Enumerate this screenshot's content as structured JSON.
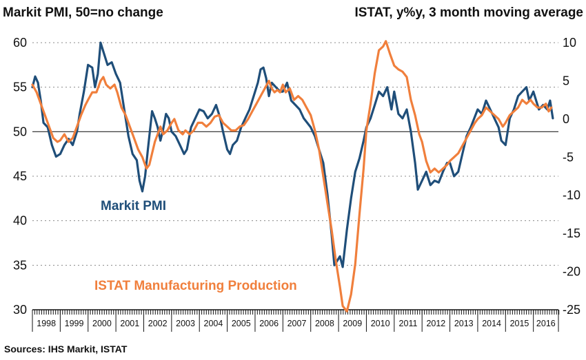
{
  "chart_data": {
    "type": "line",
    "title_left": "Markit PMI, 50=no change",
    "title_right": "ISTAT, y%y, 3 month moving average",
    "source": "Sources: IHS Markit, ISTAT",
    "y_left": {
      "min": 30,
      "max": 60,
      "ticks": [
        30,
        35,
        40,
        45,
        50,
        55,
        60
      ],
      "reference_line": 50
    },
    "y_right": {
      "min": -25,
      "max": 10,
      "ticks": [
        -25,
        -20,
        -15,
        -10,
        -5,
        0,
        5,
        10
      ]
    },
    "x": {
      "start": 1998,
      "end": 2016.9,
      "labels": [
        "1998",
        "1999",
        "2000",
        "2001",
        "2002",
        "2003",
        "2004",
        "2005",
        "2006",
        "2007",
        "2008",
        "2009",
        "2010",
        "2011",
        "2012",
        "2013",
        "2014",
        "2015",
        "2016"
      ]
    },
    "series": [
      {
        "name": "Markit PMI",
        "axis": "left",
        "color": "#1f4e79",
        "points": [
          [
            1998.0,
            55.0
          ],
          [
            1998.1,
            56.2
          ],
          [
            1998.2,
            55.5
          ],
          [
            1998.3,
            53.5
          ],
          [
            1998.4,
            51.0
          ],
          [
            1998.55,
            50.5
          ],
          [
            1998.7,
            48.5
          ],
          [
            1998.85,
            47.2
          ],
          [
            1999.0,
            47.5
          ],
          [
            1999.15,
            48.5
          ],
          [
            1999.3,
            49.2
          ],
          [
            1999.45,
            48.5
          ],
          [
            1999.6,
            50.0
          ],
          [
            1999.7,
            52.0
          ],
          [
            1999.85,
            54.5
          ],
          [
            2000.0,
            57.5
          ],
          [
            2000.15,
            57.2
          ],
          [
            2000.25,
            55.0
          ],
          [
            2000.35,
            56.5
          ],
          [
            2000.45,
            60.0
          ],
          [
            2000.55,
            59.0
          ],
          [
            2000.7,
            57.5
          ],
          [
            2000.85,
            57.8
          ],
          [
            2001.0,
            56.5
          ],
          [
            2001.15,
            55.5
          ],
          [
            2001.3,
            52.5
          ],
          [
            2001.45,
            49.5
          ],
          [
            2001.6,
            47.5
          ],
          [
            2001.75,
            46.8
          ],
          [
            2001.85,
            44.5
          ],
          [
            2001.95,
            43.3
          ],
          [
            2002.05,
            45.0
          ],
          [
            2002.15,
            48.0
          ],
          [
            2002.3,
            52.3
          ],
          [
            2002.4,
            51.5
          ],
          [
            2002.5,
            50.5
          ],
          [
            2002.6,
            49.0
          ],
          [
            2002.7,
            50.3
          ],
          [
            2002.8,
            52.0
          ],
          [
            2002.9,
            51.5
          ],
          [
            2003.0,
            50.0
          ],
          [
            2003.15,
            49.5
          ],
          [
            2003.3,
            48.5
          ],
          [
            2003.45,
            47.5
          ],
          [
            2003.55,
            48.0
          ],
          [
            2003.7,
            50.5
          ],
          [
            2003.85,
            51.5
          ],
          [
            2004.0,
            52.5
          ],
          [
            2004.15,
            52.3
          ],
          [
            2004.3,
            51.5
          ],
          [
            2004.45,
            52.0
          ],
          [
            2004.6,
            53.0
          ],
          [
            2004.75,
            51.5
          ],
          [
            2004.85,
            50.0
          ],
          [
            2005.0,
            48.0
          ],
          [
            2005.1,
            47.5
          ],
          [
            2005.2,
            48.5
          ],
          [
            2005.35,
            49.0
          ],
          [
            2005.5,
            50.5
          ],
          [
            2005.65,
            51.5
          ],
          [
            2005.8,
            52.5
          ],
          [
            2006.0,
            54.5
          ],
          [
            2006.1,
            55.5
          ],
          [
            2006.2,
            57.0
          ],
          [
            2006.3,
            57.2
          ],
          [
            2006.4,
            56.0
          ],
          [
            2006.5,
            54.0
          ],
          [
            2006.6,
            55.5
          ],
          [
            2006.75,
            55.0
          ],
          [
            2006.9,
            54.5
          ],
          [
            2007.0,
            54.5
          ],
          [
            2007.15,
            55.5
          ],
          [
            2007.3,
            53.5
          ],
          [
            2007.45,
            53.0
          ],
          [
            2007.6,
            52.5
          ],
          [
            2007.75,
            51.5
          ],
          [
            2008.0,
            50.5
          ],
          [
            2008.15,
            49.5
          ],
          [
            2008.3,
            48.0
          ],
          [
            2008.45,
            46.5
          ],
          [
            2008.6,
            43.0
          ],
          [
            2008.75,
            38.5
          ],
          [
            2008.85,
            35.0
          ],
          [
            2008.95,
            35.5
          ],
          [
            2009.05,
            36.0
          ],
          [
            2009.15,
            34.8
          ],
          [
            2009.3,
            39.0
          ],
          [
            2009.45,
            42.5
          ],
          [
            2009.6,
            45.5
          ],
          [
            2009.75,
            47.0
          ],
          [
            2009.9,
            49.0
          ],
          [
            2010.0,
            50.5
          ],
          [
            2010.15,
            51.5
          ],
          [
            2010.3,
            53.0
          ],
          [
            2010.45,
            54.5
          ],
          [
            2010.6,
            54.0
          ],
          [
            2010.75,
            55.0
          ],
          [
            2010.9,
            52.5
          ],
          [
            2011.0,
            54.5
          ],
          [
            2011.15,
            52.0
          ],
          [
            2011.3,
            51.5
          ],
          [
            2011.45,
            52.5
          ],
          [
            2011.6,
            50.0
          ],
          [
            2011.75,
            46.5
          ],
          [
            2011.85,
            43.5
          ],
          [
            2012.0,
            44.5
          ],
          [
            2012.15,
            45.5
          ],
          [
            2012.3,
            44.0
          ],
          [
            2012.45,
            44.5
          ],
          [
            2012.6,
            44.3
          ],
          [
            2012.75,
            45.5
          ],
          [
            2012.9,
            46.5
          ],
          [
            2013.0,
            46.5
          ],
          [
            2013.15,
            45.0
          ],
          [
            2013.3,
            45.5
          ],
          [
            2013.45,
            47.5
          ],
          [
            2013.6,
            49.5
          ],
          [
            2013.75,
            50.5
          ],
          [
            2014.0,
            52.5
          ],
          [
            2014.15,
            52.0
          ],
          [
            2014.3,
            53.5
          ],
          [
            2014.45,
            52.5
          ],
          [
            2014.6,
            51.5
          ],
          [
            2014.75,
            50.5
          ],
          [
            2014.85,
            49.0
          ],
          [
            2015.0,
            48.5
          ],
          [
            2015.15,
            51.5
          ],
          [
            2015.3,
            52.5
          ],
          [
            2015.45,
            54.0
          ],
          [
            2015.6,
            54.5
          ],
          [
            2015.75,
            55.0
          ],
          [
            2015.85,
            53.5
          ],
          [
            2016.0,
            54.5
          ],
          [
            2016.1,
            53.5
          ],
          [
            2016.2,
            52.5
          ],
          [
            2016.35,
            53.0
          ],
          [
            2016.5,
            52.5
          ],
          [
            2016.6,
            53.5
          ],
          [
            2016.7,
            51.5
          ]
        ]
      },
      {
        "name": "ISTAT Manufacturing Production",
        "axis": "right",
        "color": "#f07f3c",
        "points": [
          [
            1998.0,
            4.5
          ],
          [
            1998.15,
            3.5
          ],
          [
            1998.3,
            2.0
          ],
          [
            1998.45,
            0.5
          ],
          [
            1998.6,
            -1.0
          ],
          [
            1998.75,
            -2.5
          ],
          [
            1998.9,
            -3.0
          ],
          [
            1999.0,
            -2.8
          ],
          [
            1999.15,
            -2.0
          ],
          [
            1999.3,
            -3.0
          ],
          [
            1999.45,
            -2.5
          ],
          [
            1999.6,
            -1.0
          ],
          [
            1999.75,
            0.5
          ],
          [
            1999.9,
            1.8
          ],
          [
            2000.0,
            2.5
          ],
          [
            2000.15,
            3.5
          ],
          [
            2000.3,
            3.5
          ],
          [
            2000.45,
            5.0
          ],
          [
            2000.55,
            5.5
          ],
          [
            2000.65,
            4.5
          ],
          [
            2000.8,
            4.0
          ],
          [
            2000.95,
            4.5
          ],
          [
            2001.05,
            3.5
          ],
          [
            2001.2,
            1.5
          ],
          [
            2001.35,
            0.5
          ],
          [
            2001.5,
            -1.0
          ],
          [
            2001.65,
            -2.5
          ],
          [
            2001.8,
            -4.0
          ],
          [
            2001.95,
            -5.0
          ],
          [
            2002.1,
            -6.5
          ],
          [
            2002.2,
            -6.0
          ],
          [
            2002.3,
            -4.5
          ],
          [
            2002.4,
            -3.0
          ],
          [
            2002.5,
            -2.0
          ],
          [
            2002.6,
            -1.0
          ],
          [
            2002.7,
            -2.0
          ],
          [
            2002.85,
            -1.5
          ],
          [
            2003.0,
            -0.5
          ],
          [
            2003.1,
            0.0
          ],
          [
            2003.25,
            -1.5
          ],
          [
            2003.4,
            -2.0
          ],
          [
            2003.5,
            -1.5
          ],
          [
            2003.65,
            -2.0
          ],
          [
            2003.8,
            -1.5
          ],
          [
            2003.95,
            -0.5
          ],
          [
            2004.1,
            -0.5
          ],
          [
            2004.25,
            -1.0
          ],
          [
            2004.4,
            -0.5
          ],
          [
            2004.55,
            0.3
          ],
          [
            2004.7,
            0.5
          ],
          [
            2004.85,
            -0.5
          ],
          [
            2005.0,
            -1.0
          ],
          [
            2005.15,
            -1.5
          ],
          [
            2005.3,
            -1.5
          ],
          [
            2005.45,
            -1.0
          ],
          [
            2005.6,
            -0.8
          ],
          [
            2005.75,
            0.0
          ],
          [
            2005.9,
            1.0
          ],
          [
            2006.05,
            2.0
          ],
          [
            2006.2,
            3.0
          ],
          [
            2006.35,
            4.0
          ],
          [
            2006.5,
            5.0
          ],
          [
            2006.6,
            4.0
          ],
          [
            2006.7,
            3.5
          ],
          [
            2006.8,
            3.8
          ],
          [
            2006.9,
            3.5
          ],
          [
            2007.0,
            4.5
          ],
          [
            2007.1,
            3.5
          ],
          [
            2007.25,
            4.0
          ],
          [
            2007.4,
            2.5
          ],
          [
            2007.55,
            3.0
          ],
          [
            2007.7,
            2.5
          ],
          [
            2007.85,
            1.5
          ],
          [
            2008.0,
            0.5
          ],
          [
            2008.15,
            -1.5
          ],
          [
            2008.3,
            -4.0
          ],
          [
            2008.45,
            -7.5
          ],
          [
            2008.6,
            -11.0
          ],
          [
            2008.75,
            -14.5
          ],
          [
            2008.9,
            -18.5
          ],
          [
            2009.05,
            -22.0
          ],
          [
            2009.15,
            -24.5
          ],
          [
            2009.3,
            -25.2
          ],
          [
            2009.45,
            -23.0
          ],
          [
            2009.6,
            -19.0
          ],
          [
            2009.75,
            -12.5
          ],
          [
            2009.9,
            -6.5
          ],
          [
            2010.0,
            -1.5
          ],
          [
            2010.15,
            2.0
          ],
          [
            2010.3,
            6.0
          ],
          [
            2010.45,
            9.0
          ],
          [
            2010.6,
            9.5
          ],
          [
            2010.7,
            10.2
          ],
          [
            2010.85,
            8.5
          ],
          [
            2011.0,
            7.0
          ],
          [
            2011.15,
            6.5
          ],
          [
            2011.3,
            6.2
          ],
          [
            2011.45,
            5.5
          ],
          [
            2011.6,
            2.5
          ],
          [
            2011.75,
            0.5
          ],
          [
            2011.9,
            -2.0
          ],
          [
            2012.0,
            -3.0
          ],
          [
            2012.15,
            -5.5
          ],
          [
            2012.3,
            -7.0
          ],
          [
            2012.45,
            -6.5
          ],
          [
            2012.6,
            -7.0
          ],
          [
            2012.75,
            -6.5
          ],
          [
            2012.9,
            -6.0
          ],
          [
            2013.0,
            -5.5
          ],
          [
            2013.15,
            -5.0
          ],
          [
            2013.3,
            -4.5
          ],
          [
            2013.45,
            -3.5
          ],
          [
            2013.6,
            -2.5
          ],
          [
            2013.75,
            -1.5
          ],
          [
            2013.9,
            -0.5
          ],
          [
            2014.0,
            0.0
          ],
          [
            2014.15,
            0.5
          ],
          [
            2014.3,
            1.5
          ],
          [
            2014.45,
            1.0
          ],
          [
            2014.6,
            0.5
          ],
          [
            2014.75,
            0.0
          ],
          [
            2014.9,
            -1.0
          ],
          [
            2015.0,
            -0.5
          ],
          [
            2015.15,
            0.5
          ],
          [
            2015.3,
            1.0
          ],
          [
            2015.45,
            1.5
          ],
          [
            2015.6,
            2.5
          ],
          [
            2015.75,
            2.0
          ],
          [
            2015.9,
            2.5
          ],
          [
            2016.0,
            2.0
          ],
          [
            2016.15,
            1.5
          ],
          [
            2016.3,
            1.5
          ],
          [
            2016.45,
            2.0
          ],
          [
            2016.55,
            1.0
          ],
          [
            2016.65,
            1.5
          ]
        ]
      }
    ],
    "annotations": [
      {
        "text": "Markit PMI",
        "series": "Markit PMI"
      },
      {
        "text": "ISTAT Manufacturing Production",
        "series": "ISTAT Manufacturing Production"
      }
    ],
    "colors": {
      "pmi": "#1f4e79",
      "istat": "#f07f3c",
      "grid": "#888888",
      "axis": "#111111"
    }
  }
}
